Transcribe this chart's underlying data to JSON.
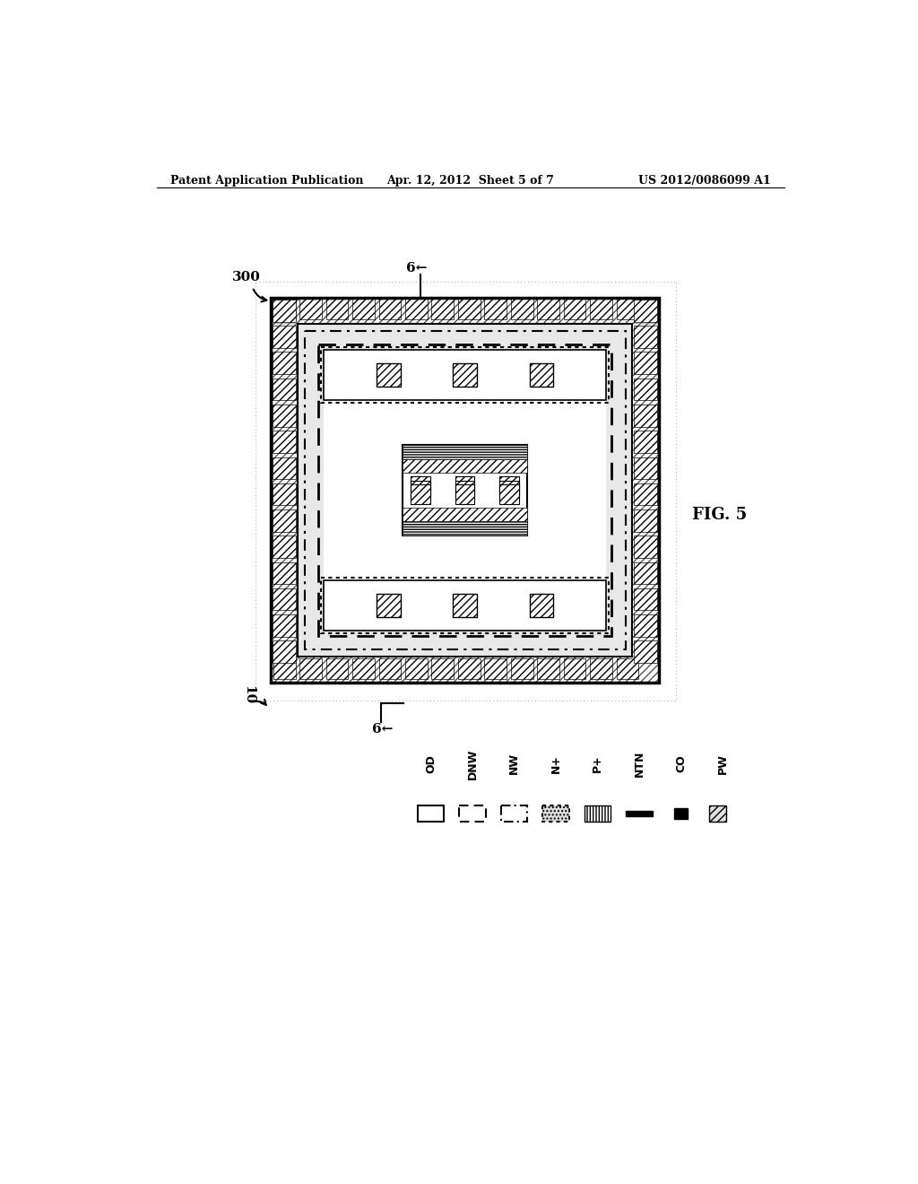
{
  "title_left": "Patent Application Publication",
  "title_mid": "Apr. 12, 2012  Sheet 5 of 7",
  "title_right": "US 2012/0086099 A1",
  "fig_label": "FIG. 5",
  "label_300": "300",
  "label_6_top": "6",
  "label_10": "10",
  "label_6_bot": "6",
  "legend_items": [
    "OD",
    "DNW",
    "NW",
    "N+",
    "P+",
    "NTN",
    "CO",
    "PW"
  ],
  "bg_color": "#ffffff"
}
